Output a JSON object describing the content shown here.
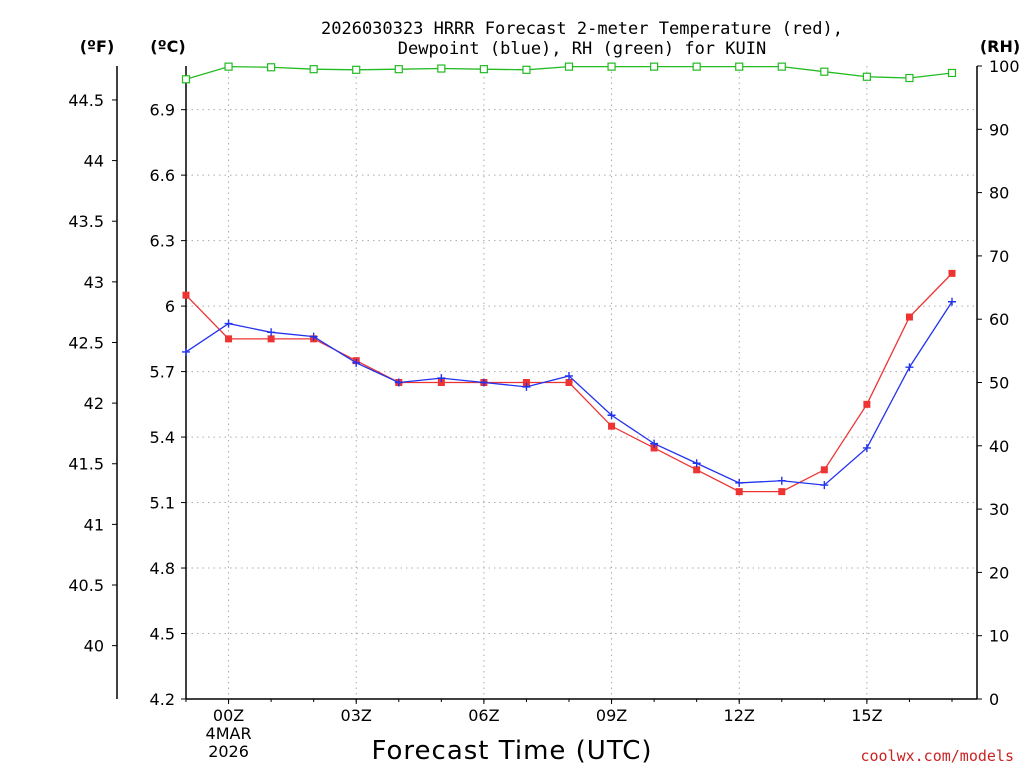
{
  "chart_data": {
    "type": "line",
    "title_lines": [
      "2026030323 HRRR Forecast 2-meter Temperature (red),",
      "Dewpoint (blue), RH (green) for KUIN"
    ],
    "xlabel": "Forecast Time (UTC)",
    "x_range_hours": [
      -1,
      17
    ],
    "x_ticks": [
      {
        "hour": 0,
        "label": "00Z",
        "sub": [
          "4MAR",
          "2026"
        ]
      },
      {
        "hour": 3,
        "label": "03Z"
      },
      {
        "hour": 6,
        "label": "06Z"
      },
      {
        "hour": 9,
        "label": "09Z"
      },
      {
        "hour": 12,
        "label": "12Z"
      },
      {
        "hour": 15,
        "label": "15Z"
      }
    ],
    "axes": {
      "fahrenheit": {
        "unit_label": "(ºF)",
        "ticks": [
          40,
          40.5,
          41,
          41.5,
          42,
          42.5,
          43,
          43.5,
          44,
          44.5
        ]
      },
      "celsius": {
        "unit_label": "(ºC)",
        "ylim": [
          4.2,
          7.1
        ],
        "ticks": [
          4.2,
          4.5,
          4.8,
          5.1,
          5.4,
          5.7,
          6,
          6.3,
          6.6,
          6.9
        ]
      },
      "rh": {
        "unit_label": "(RH)",
        "ylim": [
          0,
          100
        ],
        "ticks": [
          0,
          10,
          20,
          30,
          40,
          50,
          60,
          70,
          80,
          90,
          100
        ]
      }
    },
    "x_hours": [
      -1,
      0,
      1,
      2,
      3,
      4,
      5,
      6,
      7,
      8,
      9,
      10,
      11,
      12,
      13,
      14,
      15,
      16,
      17
    ],
    "series": [
      {
        "name": "Temperature",
        "axis": "celsius",
        "color": "#ee3333",
        "marker": "square-filled",
        "values": [
          6.05,
          5.85,
          5.85,
          5.85,
          5.75,
          5.65,
          5.65,
          5.65,
          5.65,
          5.65,
          5.45,
          5.35,
          5.25,
          5.15,
          5.15,
          5.25,
          5.55,
          5.95,
          6.15
        ]
      },
      {
        "name": "Dewpoint",
        "axis": "celsius",
        "color": "#2233ee",
        "marker": "plus",
        "values": [
          5.79,
          5.92,
          5.88,
          5.86,
          5.74,
          5.65,
          5.67,
          5.65,
          5.63,
          5.68,
          5.5,
          5.37,
          5.28,
          5.19,
          5.2,
          5.18,
          5.35,
          5.72,
          6.02
        ]
      },
      {
        "name": "RH",
        "axis": "rh",
        "color": "#22bb22",
        "marker": "square-open",
        "values": [
          97.9,
          99.9,
          99.8,
          99.5,
          99.4,
          99.5,
          99.6,
          99.5,
          99.4,
          99.9,
          99.9,
          99.9,
          99.9,
          99.9,
          99.9,
          99.1,
          98.3,
          98.1,
          98.9
        ]
      }
    ],
    "grid": true,
    "credit": "coolwx.com/models"
  }
}
